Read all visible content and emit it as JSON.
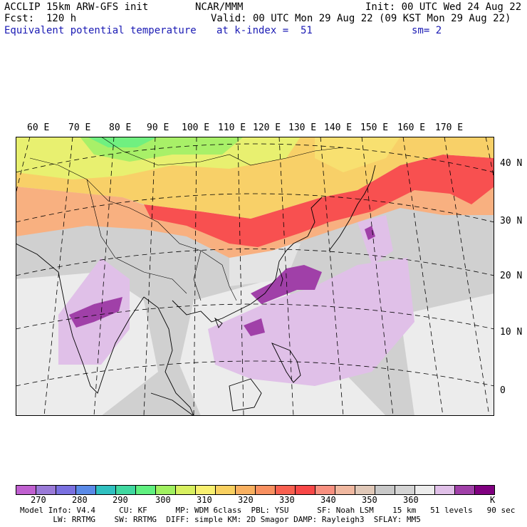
{
  "header": {
    "model": "ACCLIP 15km ARW-GFS init",
    "center": "NCAR/MMM",
    "init": "Init: 00 UTC Wed 24 Aug 22",
    "forecast": "Fcst:  120 h",
    "valid": "Valid: 00 UTC Mon 29 Aug 22 (09 KST Mon 29 Aug 22)",
    "field": "Equivalent potential temperature",
    "level": "at k-index =  51",
    "smoothing": "sm= 2"
  },
  "map": {
    "lon_labels": [
      "60 E",
      "70 E",
      "80 E",
      "90 E",
      "100 E",
      "110 E",
      "120 E",
      "130 E",
      "140 E",
      "150 E",
      "160 E",
      "170 E"
    ],
    "lat_labels": [
      "40 N",
      "30 N",
      "20 N",
      "10 N",
      "0"
    ]
  },
  "colorbar": {
    "colors": [
      "#c060d0",
      "#9a7ad8",
      "#7a70e0",
      "#5a8ae8",
      "#30c0c0",
      "#40d8a0",
      "#60f080",
      "#a0f060",
      "#d8f060",
      "#f8f070",
      "#f8d060",
      "#f8b060",
      "#f89060",
      "#f86050",
      "#f84848",
      "#f89080",
      "#f0b8a0",
      "#e0c8b8",
      "#c8c8c8",
      "#d4d4d4",
      "#ececec",
      "#e0c0e8",
      "#a040a8",
      "#800080"
    ],
    "labels": [
      "270",
      "280",
      "290",
      "300",
      "310",
      "320",
      "330",
      "340",
      "350",
      "360",
      "K"
    ],
    "unit": "K"
  },
  "footer": {
    "line1": "Model Info: V4.4     CU: KF      MP: WDM 6class  PBL: YSU      SF: Noah LSM    15 km   51 levels   90 sec",
    "line2": "       LW: RRTMG    SW: RRTMG  DIFF: simple KM: 2D Smagor DAMP: Rayleigh3  SFLAY: MM5"
  }
}
